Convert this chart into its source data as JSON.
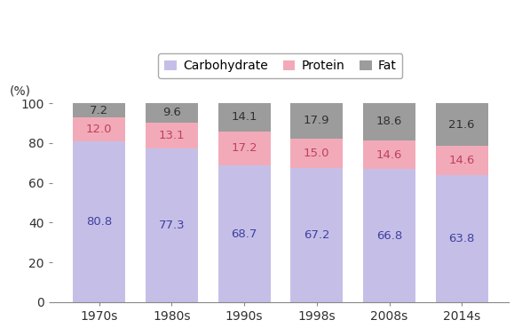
{
  "categories": [
    "1970s",
    "1980s",
    "1990s",
    "1998s",
    "2008s",
    "2014s"
  ],
  "carbohydrate": [
    80.8,
    77.3,
    68.7,
    67.2,
    66.8,
    63.8
  ],
  "protein": [
    12.0,
    13.1,
    17.2,
    15.0,
    14.6,
    14.6
  ],
  "fat": [
    7.2,
    9.6,
    14.1,
    17.9,
    18.6,
    21.6
  ],
  "carbohydrate_color": "#c5bfe8",
  "protein_color": "#f2aab8",
  "fat_color": "#9c9c9c",
  "ylabel": "(%)",
  "ylim": [
    0,
    100
  ],
  "yticks": [
    0,
    20,
    40,
    60,
    80,
    100
  ],
  "legend_labels": [
    "Carbohydrate",
    "Protein",
    "Fat"
  ],
  "figsize": [
    5.88,
    3.78
  ],
  "dpi": 100,
  "bar_width": 0.72,
  "label_fontsize": 9.5,
  "axis_fontsize": 10,
  "legend_fontsize": 10,
  "carb_text_color": "#4040a0",
  "prot_text_color": "#c04060",
  "fat_text_color": "#303030",
  "tick_label_color": "#303030",
  "background_color": "#ffffff"
}
